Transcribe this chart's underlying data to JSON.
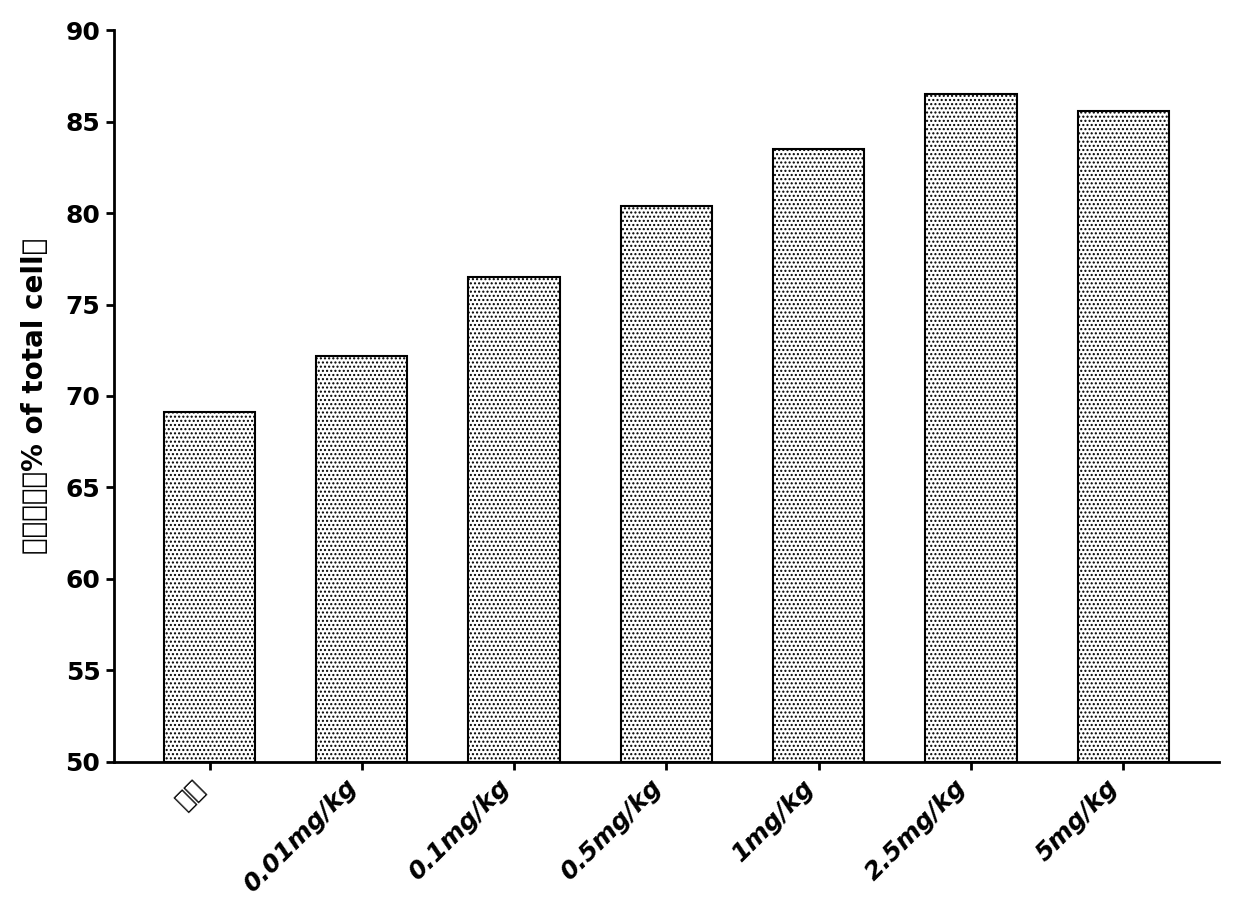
{
  "categories": [
    "对照",
    "0.01mg/kg",
    "0.1mg/kg",
    "0.5mg/kg",
    "1mg/kg",
    "2.5mg/kg",
    "5mg/kg"
  ],
  "values": [
    69.1,
    72.2,
    76.5,
    80.4,
    83.5,
    86.5,
    85.6
  ],
  "ylabel_chinese": "精力活力（% of total cell）",
  "ylim": [
    50,
    90
  ],
  "yticks": [
    50,
    55,
    60,
    65,
    70,
    75,
    80,
    85,
    90
  ],
  "bar_color": "#ffffff",
  "edge_color": "#000000",
  "background_color": "#ffffff",
  "bar_width": 0.6,
  "hatch": "....",
  "tick_fontsize": 18,
  "label_fontsize": 20
}
